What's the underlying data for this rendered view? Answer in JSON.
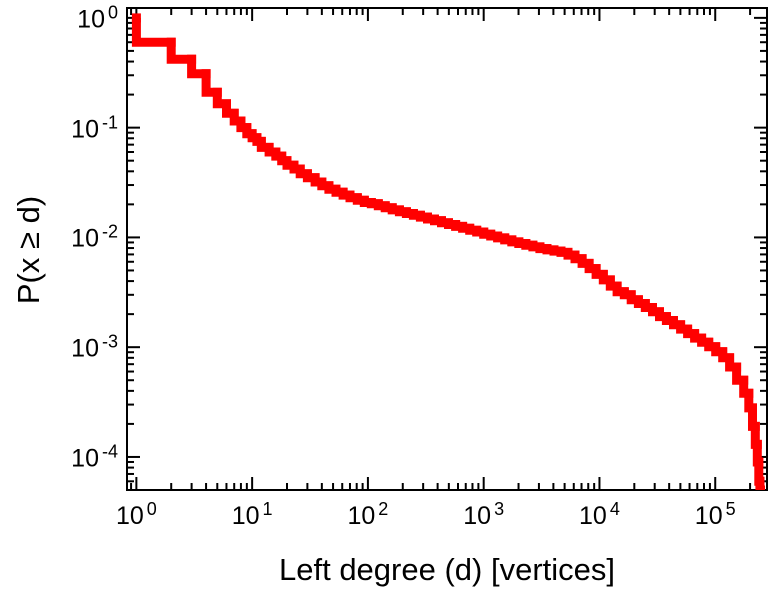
{
  "chart_data": {
    "type": "line",
    "title": "",
    "xlabel": "Left degree (d) [vertices]",
    "ylabel": "P(x ≥ d)",
    "x_scale": "log",
    "y_scale": "log",
    "grid": false,
    "legend": "none",
    "xlim": [
      0.83,
      280000
    ],
    "ylim": [
      5e-05,
      1.23
    ],
    "x_tick_exponents": [
      0,
      1,
      2,
      3,
      4,
      5
    ],
    "y_tick_exponents": [
      0,
      -1,
      -2,
      -3,
      -4
    ],
    "axis_color": "#000000",
    "series": [
      {
        "name": "left-degree-ccdf",
        "color": "#ff0000",
        "style": "thick-steps",
        "points": [
          [
            1,
            1.0
          ],
          [
            2,
            0.6
          ],
          [
            3,
            0.42
          ],
          [
            4,
            0.31
          ],
          [
            5,
            0.21
          ],
          [
            6,
            0.165
          ],
          [
            7,
            0.135
          ],
          [
            8,
            0.115
          ],
          [
            9,
            0.1
          ],
          [
            10,
            0.088
          ],
          [
            11,
            0.081
          ],
          [
            12,
            0.075
          ],
          [
            14,
            0.066
          ],
          [
            16,
            0.06
          ],
          [
            18,
            0.055
          ],
          [
            20,
            0.05
          ],
          [
            23,
            0.0455
          ],
          [
            26,
            0.042
          ],
          [
            30,
            0.038
          ],
          [
            35,
            0.035
          ],
          [
            40,
            0.032
          ],
          [
            46,
            0.0295
          ],
          [
            53,
            0.0275
          ],
          [
            61,
            0.0258
          ],
          [
            70,
            0.0243
          ],
          [
            81,
            0.023
          ],
          [
            93,
            0.0218
          ],
          [
            107,
            0.0208
          ],
          [
            123,
            0.0203
          ],
          [
            141,
            0.0194
          ],
          [
            162,
            0.0186
          ],
          [
            187,
            0.0178
          ],
          [
            215,
            0.0171
          ],
          [
            247,
            0.0165
          ],
          [
            284,
            0.0159
          ],
          [
            327,
            0.0153
          ],
          [
            376,
            0.0147
          ],
          [
            432,
            0.0142
          ],
          [
            497,
            0.0136
          ],
          [
            572,
            0.0131
          ],
          [
            658,
            0.0126
          ],
          [
            757,
            0.0121
          ],
          [
            870,
            0.0116
          ],
          [
            1000,
            0.0112
          ],
          [
            1150,
            0.0107
          ],
          [
            1320,
            0.0103
          ],
          [
            1520,
            0.0099
          ],
          [
            1750,
            0.0095
          ],
          [
            2010,
            0.0091
          ],
          [
            2310,
            0.0088
          ],
          [
            2660,
            0.0085
          ],
          [
            3060,
            0.0082
          ],
          [
            3520,
            0.0079
          ],
          [
            4050,
            0.0077
          ],
          [
            4650,
            0.0075
          ],
          [
            5350,
            0.0073
          ],
          [
            6150,
            0.0069
          ],
          [
            7080,
            0.0064
          ],
          [
            8140,
            0.0058
          ],
          [
            9360,
            0.0052
          ],
          [
            10800,
            0.0046
          ],
          [
            12400,
            0.0041
          ],
          [
            14200,
            0.0036
          ],
          [
            16400,
            0.0032
          ],
          [
            18800,
            0.003
          ],
          [
            21700,
            0.0027
          ],
          [
            24900,
            0.0025
          ],
          [
            28700,
            0.0023
          ],
          [
            33000,
            0.0021
          ],
          [
            37900,
            0.0019
          ],
          [
            43600,
            0.00175
          ],
          [
            50200,
            0.0016
          ],
          [
            57700,
            0.00146
          ],
          [
            66400,
            0.00133
          ],
          [
            76300,
            0.00121
          ],
          [
            87800,
            0.00111
          ],
          [
            101000,
            0.00101
          ],
          [
            116000,
            0.00091
          ],
          [
            133000,
            0.0008
          ],
          [
            153000,
            0.00066
          ],
          [
            176000,
            0.0005
          ],
          [
            195000,
            0.00038
          ],
          [
            210000,
            0.00028
          ],
          [
            222000,
            0.00019
          ],
          [
            231000,
            0.00013
          ],
          [
            238000,
            9e-05
          ],
          [
            243000,
            6e-05
          ],
          [
            246000,
            5e-05
          ]
        ]
      }
    ]
  }
}
